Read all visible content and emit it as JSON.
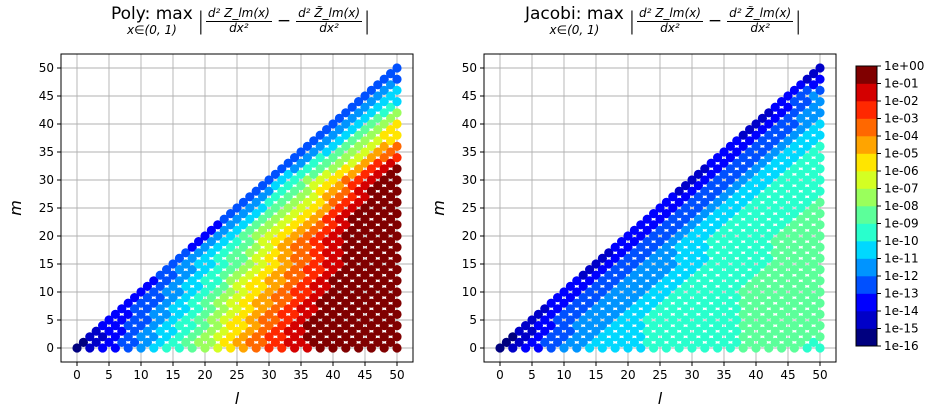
{
  "chart_data": [
    {
      "type": "scatter",
      "title": {
        "prefix": "Poly: max",
        "subscript": "x∈(0, 1)",
        "term1_num": "d² Z_lm(x)",
        "term1_den": "dx²",
        "term2_num": "d² Z̃_lm(x)",
        "term2_den": "dx²",
        "minus": "−",
        "bar": "|"
      },
      "xlabel": "l",
      "ylabel": "m",
      "xlim": [
        -2.5,
        52.5
      ],
      "ylim": [
        -2.5,
        52.5
      ],
      "xticks": [
        "0",
        "5",
        "10",
        "15",
        "20",
        "25",
        "30",
        "35",
        "40",
        "45",
        "50"
      ],
      "yticks": [
        "0",
        "5",
        "10",
        "15",
        "20",
        "25",
        "30",
        "35",
        "40",
        "45",
        "50"
      ],
      "grid": true,
      "points_rule": "l = 0..50, m = 0..l with (l - m) even",
      "log10_error_grid_note": "rows: m = 0,5,...,50; columns: l - m = 0,5,...",
      "log10_error_grid": [
        [
          -16,
          -14,
          -12,
          -10,
          -8,
          -5,
          -3,
          -2,
          0,
          0,
          0
        ],
        [
          -14,
          -13,
          -11,
          -9,
          -6,
          -4,
          -2,
          0,
          0,
          0
        ],
        [
          -14,
          -12,
          -10,
          -7,
          -5,
          -3,
          -1,
          0,
          0
        ],
        [
          -13,
          -11,
          -9,
          -6,
          -4,
          -2,
          0,
          0
        ],
        [
          -14,
          -10,
          -7,
          -4,
          -2,
          0,
          0
        ],
        [
          -13,
          -10,
          -7,
          -4,
          -1,
          0
        ],
        [
          -13,
          -9,
          -6,
          -2,
          0
        ],
        [
          -13,
          -10,
          -7,
          -3
        ],
        [
          -13,
          -10,
          -6
        ],
        [
          -13,
          -11
        ],
        [
          -13
        ]
      ]
    },
    {
      "type": "scatter",
      "title": {
        "prefix": "Jacobi: max",
        "subscript": "x∈(0, 1)",
        "term1_num": "d² Z_lm(x)",
        "term1_den": "dx²",
        "term2_num": "d² Z̃_lm(x)",
        "term2_den": "dx²",
        "minus": "−",
        "bar": "|"
      },
      "xlabel": "l",
      "ylabel": "m",
      "xlim": [
        -2.5,
        52.5
      ],
      "ylim": [
        -2.5,
        52.5
      ],
      "xticks": [
        "0",
        "5",
        "10",
        "15",
        "20",
        "25",
        "30",
        "35",
        "40",
        "45",
        "50"
      ],
      "yticks": [
        "0",
        "5",
        "10",
        "15",
        "20",
        "25",
        "30",
        "35",
        "40",
        "45",
        "50"
      ],
      "grid": true,
      "points_rule": "l = 0..50, m = 0..l with (l - m) even",
      "log10_error_grid_note": "rows: m = 0,5,...,50; columns: l - m = 0,5,...",
      "log10_error_grid": [
        [
          -16,
          -14,
          -12,
          -11,
          -11,
          -10,
          -10,
          -10,
          -9,
          -9,
          -10
        ],
        [
          -15,
          -13,
          -12,
          -11,
          -10,
          -10,
          -10,
          -9,
          -9,
          -9
        ],
        [
          -14,
          -13,
          -12,
          -11,
          -10,
          -10,
          -9,
          -9,
          -9
        ],
        [
          -15,
          -13,
          -12,
          -11,
          -10,
          -10,
          -9,
          -9
        ],
        [
          -14,
          -13,
          -11,
          -10,
          -10,
          -9,
          -9
        ],
        [
          -14,
          -13,
          -11,
          -10,
          -10,
          -9
        ],
        [
          -15,
          -13,
          -11,
          -10,
          -10
        ],
        [
          -14,
          -13,
          -11,
          -10
        ],
        [
          -15,
          -13,
          -11
        ],
        [
          -14,
          -12
        ],
        [
          -15
        ]
      ]
    }
  ],
  "colorbar": {
    "labels": [
      "1e+00",
      "1e-01",
      "1e-02",
      "1e-03",
      "1e-04",
      "1e-05",
      "1e-06",
      "1e-07",
      "1e-08",
      "1e-09",
      "1e-10",
      "1e-11",
      "1e-12",
      "1e-13",
      "1e-14",
      "1e-15",
      "1e-16"
    ],
    "colors_low_to_high": [
      "#00007f",
      "#0000c8",
      "#0000ff",
      "#0050ff",
      "#0094ff",
      "#00d8ff",
      "#29ffcd",
      "#5cff9a",
      "#9aff5c",
      "#d4ff23",
      "#ffe500",
      "#ffa400",
      "#ff6800",
      "#ff2800",
      "#d40000",
      "#800000"
    ]
  }
}
